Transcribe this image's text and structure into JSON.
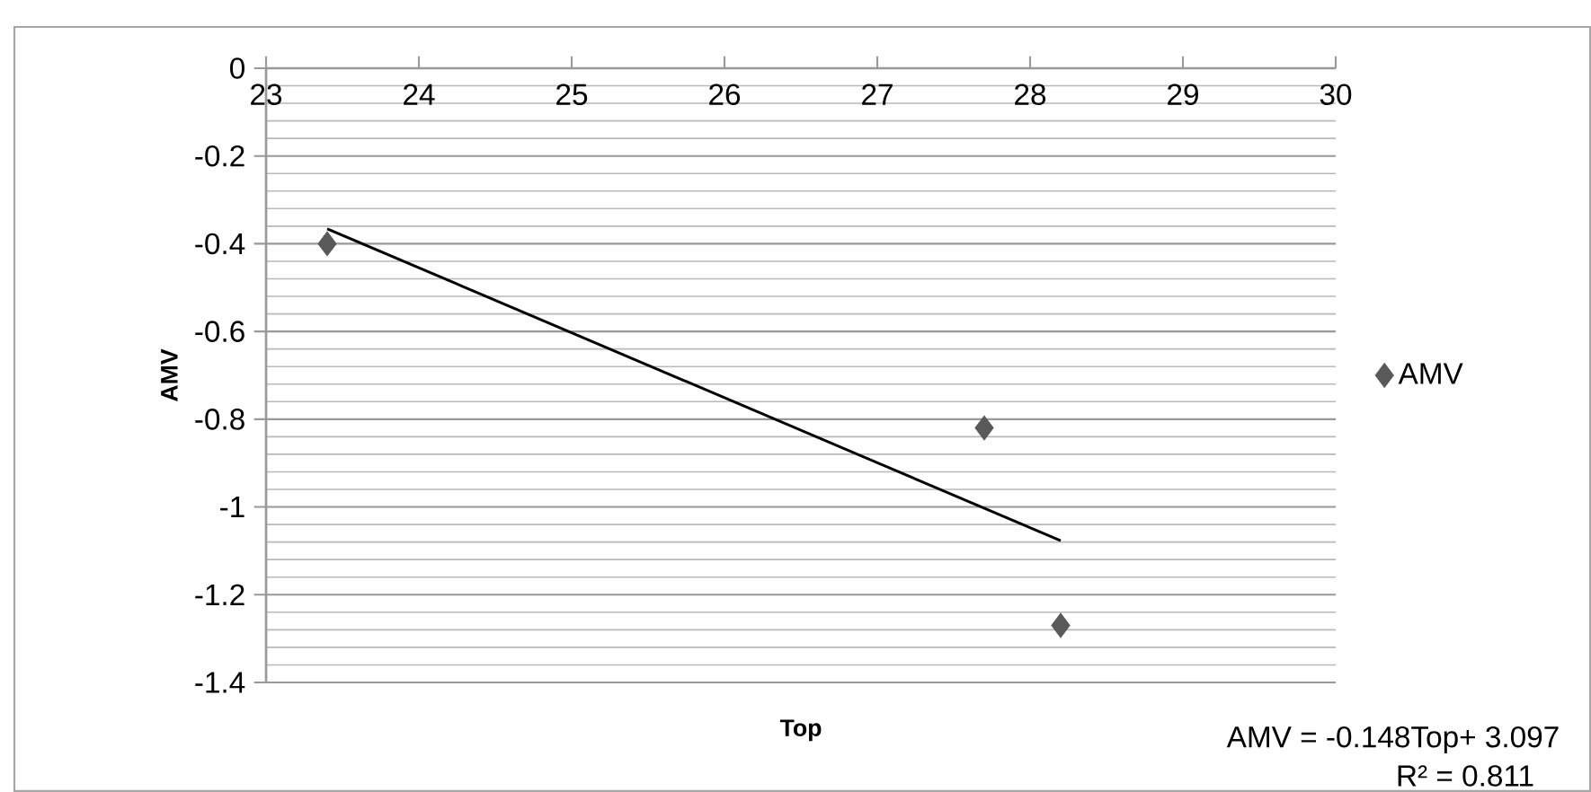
{
  "chart_data": {
    "type": "scatter",
    "xlabel": "Top",
    "ylabel": "AMV",
    "x": [
      23.4,
      27.7,
      28.2
    ],
    "series": [
      {
        "name": "AMV",
        "color": "#595959",
        "values": [
          -0.4,
          -0.82,
          -1.27
        ],
        "marker": "diamond"
      },
      {
        "type": "line",
        "color": "#000000",
        "x": [
          23.4,
          28.2
        ],
        "values": [
          -0.366,
          -1.077
        ],
        "marker": "none",
        "line_style": "solid"
      }
    ],
    "xlim": [
      23,
      30
    ],
    "xticks": [
      23,
      24,
      25,
      26,
      27,
      28,
      29,
      30
    ],
    "ylim": [
      -1.4,
      0
    ],
    "yticks": [
      0,
      -0.2,
      -0.4,
      -0.6,
      -0.8,
      -1,
      -1.2,
      -1.4
    ],
    "grid": "y",
    "legend": "right",
    "annotations": [
      "AMV = -0.148Top+ 3.097",
      "R² = 0.811"
    ]
  }
}
